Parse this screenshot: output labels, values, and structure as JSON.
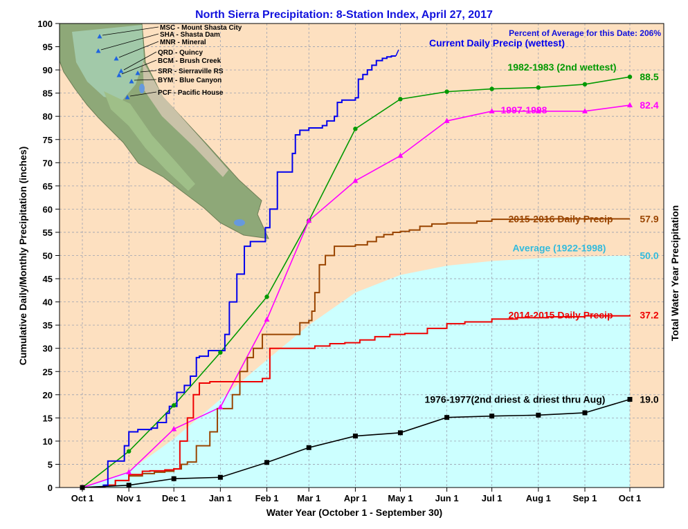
{
  "chart_data": {
    "type": "line",
    "title": "North Sierra Precipitation: 8-Station Index, April 27, 2017",
    "xlabel": "Water Year (October 1 - September 30)",
    "ylabel": "Cumulative Daily/Monthly Precipitation (inches)",
    "ylabel_right": "Total Water Year Precipitation",
    "ylim": [
      0,
      100
    ],
    "yticks": [
      0,
      5,
      10,
      15,
      20,
      25,
      30,
      35,
      40,
      45,
      50,
      55,
      60,
      65,
      70,
      75,
      80,
      85,
      90,
      95,
      100
    ],
    "xlim": [
      0,
      365
    ],
    "xtick_labels": [
      "Oct 1",
      "Nov 1",
      "Dec 1",
      "Jan 1",
      "Feb 1",
      "Mar 1",
      "Apr 1",
      "May 1",
      "Jun 1",
      "Jul 1",
      "Aug 1",
      "Sep 1",
      "Oct 1"
    ],
    "xtick_days": [
      0,
      31,
      61,
      92,
      123,
      151,
      182,
      212,
      243,
      273,
      304,
      335,
      365
    ],
    "grid": true,
    "percent_note": "Percent of Average for this Date: 206%",
    "series": [
      {
        "name": "Average (1922-1998)",
        "value_label": "50.0",
        "color": "#33bbdd",
        "fill": "#ccffff",
        "style": "area",
        "x": [
          0,
          31,
          61,
          92,
          123,
          151,
          182,
          212,
          243,
          273,
          304,
          335,
          365
        ],
        "y": [
          0,
          3.5,
          10.5,
          19,
          27.5,
          35,
          42,
          45.8,
          47.8,
          48.8,
          49.4,
          49.8,
          50
        ]
      },
      {
        "name": "1982-1983 (2nd wettest)",
        "value_label": "88.5",
        "color": "#009900",
        "marker": "circle",
        "style": "line",
        "x": [
          0,
          31,
          61,
          92,
          123,
          151,
          182,
          212,
          243,
          273,
          304,
          335,
          365
        ],
        "y": [
          0,
          7.8,
          17.7,
          29.1,
          41.1,
          57.5,
          77.3,
          83.7,
          85.3,
          85.9,
          86.2,
          86.9,
          88.5
        ]
      },
      {
        "name": "1997-1998",
        "value_label": "82.4",
        "color": "#ff00ff",
        "marker": "triangle",
        "style": "line",
        "x": [
          0,
          31,
          61,
          92,
          123,
          151,
          182,
          212,
          243,
          273,
          304,
          335,
          365
        ],
        "y": [
          0,
          3.3,
          12.6,
          17.3,
          36.2,
          57.5,
          66.1,
          71.5,
          79,
          81.1,
          81.1,
          81.1,
          82.4
        ]
      },
      {
        "name": "2015-2016 Daily Precip",
        "value_label": "57.9",
        "color": "#994400",
        "style": "step",
        "x": [
          0,
          15,
          22,
          31,
          40,
          48,
          55,
          61,
          66,
          70,
          76,
          85,
          90,
          95,
          100,
          105,
          110,
          114,
          120,
          127,
          133,
          140,
          145,
          148,
          151,
          153,
          155,
          158,
          162,
          168,
          175,
          182,
          190,
          196,
          201,
          207,
          212,
          218,
          225,
          233,
          243,
          250,
          263,
          273,
          290,
          310,
          335,
          365
        ],
        "y": [
          0,
          0.5,
          1.5,
          2.5,
          3,
          3.3,
          3.5,
          4,
          5,
          5.5,
          9,
          12,
          17,
          17,
          20,
          25,
          28,
          30,
          33,
          33,
          33,
          33,
          35.5,
          35.5,
          36,
          38,
          42,
          48,
          50,
          52,
          52,
          52.3,
          53,
          54,
          54.5,
          55,
          55.2,
          55.5,
          56.3,
          56.8,
          57,
          57,
          57.4,
          57.8,
          57.8,
          57.9,
          57.9,
          57.9
        ]
      },
      {
        "name": "2014-2015 Daily Precip",
        "value_label": "37.2",
        "color": "#ee0000",
        "style": "step",
        "x": [
          0,
          15,
          22,
          31,
          40,
          45,
          55,
          61,
          65,
          70,
          74,
          78,
          85,
          92,
          100,
          110,
          115,
          120,
          125,
          130,
          135,
          145,
          155,
          165,
          175,
          185,
          195,
          205,
          215,
          230,
          243,
          255,
          273,
          290,
          310,
          335,
          365
        ],
        "y": [
          0,
          0.5,
          1.5,
          2.8,
          3.5,
          3.6,
          3.8,
          4,
          10,
          15,
          20,
          22.5,
          22.8,
          22.8,
          22.8,
          22.8,
          22.8,
          23.5,
          30,
          30,
          30,
          30,
          30.5,
          31,
          31.2,
          31.8,
          32.5,
          33,
          33.2,
          34.3,
          35.3,
          35.7,
          36.3,
          36.6,
          36.8,
          37,
          37.2
        ]
      },
      {
        "name": "Current Daily Precip (wettest)",
        "value_label": "93.0",
        "color": "#0000ee",
        "style": "step",
        "x": [
          0,
          14,
          17,
          22,
          28,
          31,
          37,
          46,
          50,
          56,
          58,
          63,
          68,
          72,
          76,
          78,
          80,
          84,
          87,
          92,
          95,
          98,
          103,
          105,
          108,
          112,
          115,
          118,
          122,
          125,
          130,
          135,
          140,
          142,
          145,
          151,
          154,
          157,
          160,
          163,
          168,
          170,
          173,
          177,
          182,
          184,
          187,
          190,
          193,
          196,
          200,
          203,
          206,
          209
        ],
        "y": [
          0,
          0.5,
          5.7,
          5.7,
          9,
          12,
          12.5,
          12.8,
          14,
          16,
          17.5,
          20.5,
          22,
          24,
          28,
          28.3,
          28.3,
          29.5,
          29.5,
          29.5,
          33,
          40,
          46,
          46,
          52,
          53,
          53,
          53,
          56,
          60,
          68,
          68,
          72,
          76,
          77,
          77.5,
          77.5,
          77.5,
          78,
          79,
          80,
          83,
          83.5,
          83.5,
          84,
          88,
          89,
          90,
          91,
          92,
          92.5,
          92.8,
          93,
          93
        ]
      },
      {
        "name": "1976-1977(2nd driest & driest thru Aug)",
        "value_label": "19.0",
        "color": "#000000",
        "marker": "square",
        "style": "line",
        "x": [
          0,
          31,
          61,
          92,
          123,
          151,
          182,
          212,
          243,
          273,
          304,
          335,
          365
        ],
        "y": [
          0,
          0.5,
          1.9,
          2.2,
          5.4,
          8.6,
          11.1,
          11.8,
          15.1,
          15.4,
          15.6,
          16.1,
          19
        ]
      }
    ]
  },
  "map": {
    "stations": [
      {
        "label": "MSC - Mount Shasta City"
      },
      {
        "label": "SHA - Shasta Dam"
      },
      {
        "label": "MNR - Mineral"
      },
      {
        "label": "QRD - Quincy"
      },
      {
        "label": "BCM - Brush Creek"
      },
      {
        "label": "SRR - Sierraville RS"
      },
      {
        "label": "BYM - Blue Canyon"
      },
      {
        "label": "PCF - Pacific House"
      }
    ]
  }
}
